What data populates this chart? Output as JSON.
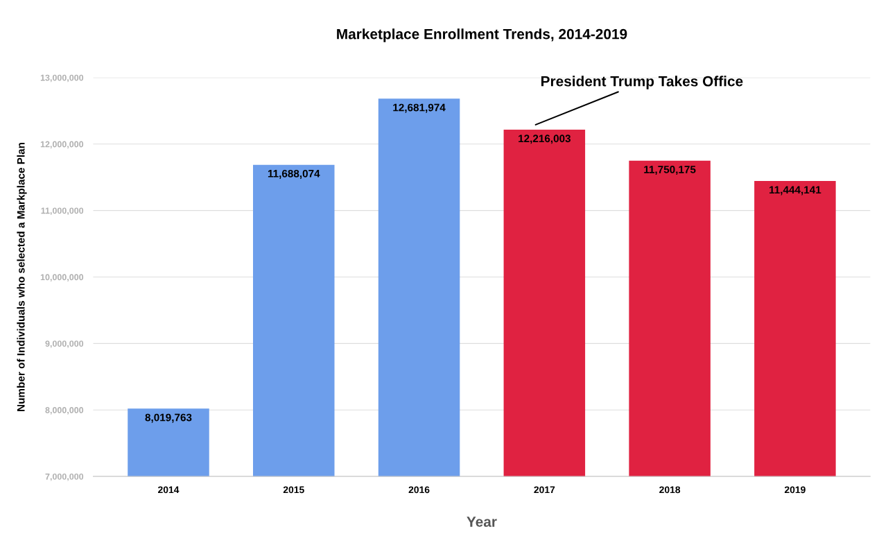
{
  "chart_data": {
    "type": "bar",
    "title": "Marketplace Enrollment Trends, 2014-2019",
    "xlabel": "Year",
    "ylabel": "Number of Individuals who selected a Markplace Plan",
    "categories": [
      "2014",
      "2015",
      "2016",
      "2017",
      "2018",
      "2019"
    ],
    "values": [
      8019763,
      11688074,
      12681974,
      12216003,
      11750175,
      11444141
    ],
    "colors": [
      "#6d9eeb",
      "#6d9eeb",
      "#6d9eeb",
      "#e02241",
      "#e02241",
      "#e02241"
    ],
    "value_labels": [
      "8,019,763",
      "11,688,074",
      "12,681,974",
      "12,216,003",
      "11,750,175",
      "11,444,141"
    ],
    "ylim": [
      7000000,
      13000000
    ],
    "yticks": [
      {
        "value": 7000000,
        "label": "7,000,000"
      },
      {
        "value": 8000000,
        "label": "8,000,000"
      },
      {
        "value": 9000000,
        "label": "9,000,000"
      },
      {
        "value": 10000000,
        "label": "10,000,000"
      },
      {
        "value": 11000000,
        "label": "11,000,000"
      },
      {
        "value": 12000000,
        "label": "12,000,000"
      },
      {
        "value": 13000000,
        "label": "13,000,000"
      }
    ],
    "grid": "y",
    "annotations": [
      {
        "text": "President Trump Takes Office",
        "x": "2017",
        "y": 12216003
      }
    ]
  }
}
